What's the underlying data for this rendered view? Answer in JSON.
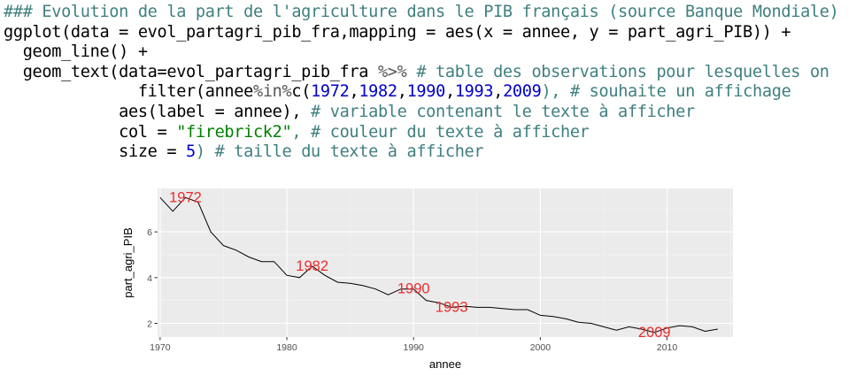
{
  "code": {
    "line1": "### Evolution de la part de l'agriculture dans le PIB français (source Banque Mondiale)",
    "line2": "ggplot(data = evol_partagri_pib_fra,mapping = aes(x = annee, y = part_agri_PIB)) +",
    "line3": "  geom_line() +",
    "line4_code": "  geom_text(data=evol_partagri_pib_fra ",
    "line4_op": "%>%",
    "line4_comment": " # table des observations pour lesquelles on",
    "line5_code": "              filter(annee",
    "line5_op": "%in%",
    "line5_code2": "c(",
    "line5_nums": [
      "1972",
      "1982",
      "1990",
      "1993",
      "2009"
    ],
    "line5_comment": "), # souhaite un affichage",
    "line6_code": "            aes(label = annee), ",
    "line6_comment": "# variable contenant le texte à afficher",
    "line7_code": "            col = ",
    "line7_string": "\"firebrick2\"",
    "line7_comment": ", # couleur du texte à afficher",
    "line8_code": "            size = ",
    "line8_num": "5",
    "line8_comment": ") # taille du texte à afficher"
  },
  "chart_data": {
    "type": "line",
    "xlabel": "annee",
    "ylabel": "part_agri_PIB",
    "xlim": [
      1969.8,
      2015.2
    ],
    "ylim": [
      1.4,
      7.9
    ],
    "xticks": [
      1970,
      1980,
      1990,
      2000,
      2010
    ],
    "yticks": [
      2,
      4,
      6
    ],
    "x": [
      1970,
      1971,
      1972,
      1973,
      1974,
      1975,
      1976,
      1977,
      1978,
      1979,
      1980,
      1981,
      1982,
      1983,
      1984,
      1985,
      1986,
      1987,
      1988,
      1989,
      1990,
      1991,
      1992,
      1993,
      1994,
      1995,
      1996,
      1997,
      1998,
      1999,
      2000,
      2001,
      2002,
      2003,
      2004,
      2005,
      2006,
      2007,
      2008,
      2009,
      2010,
      2011,
      2012,
      2013,
      2014
    ],
    "y": [
      7.5,
      6.9,
      7.5,
      7.3,
      6.0,
      5.4,
      5.2,
      4.9,
      4.7,
      4.7,
      4.1,
      4.0,
      4.5,
      4.1,
      3.8,
      3.75,
      3.65,
      3.5,
      3.25,
      3.5,
      3.5,
      3.0,
      2.9,
      2.7,
      2.75,
      2.7,
      2.7,
      2.65,
      2.6,
      2.6,
      2.35,
      2.3,
      2.2,
      2.05,
      2.0,
      1.85,
      1.7,
      1.85,
      1.75,
      1.6,
      1.8,
      1.9,
      1.85,
      1.65,
      1.75
    ],
    "labels": [
      {
        "text": "1972",
        "x": 1972,
        "y": 7.5
      },
      {
        "text": "1982",
        "x": 1982,
        "y": 4.5
      },
      {
        "text": "1990",
        "x": 1990,
        "y": 3.5
      },
      {
        "text": "1993",
        "x": 1993,
        "y": 2.7
      },
      {
        "text": "2009",
        "x": 2009,
        "y": 1.6
      }
    ],
    "label_color": "#ee2c2c",
    "panel_color": "#ebebeb",
    "line_color": "#000000"
  }
}
